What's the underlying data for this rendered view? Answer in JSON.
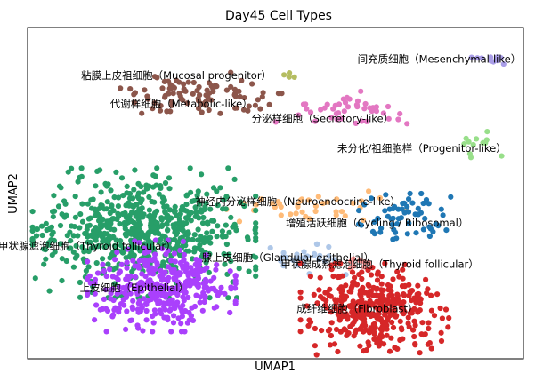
{
  "chart_data": {
    "type": "scatter",
    "title": "Day45 Cell Types",
    "xlabel": "UMAP1",
    "ylabel": "UMAP2",
    "grid": false,
    "legend": "on data",
    "clusters": [
      {
        "name": "粘膜上皮祖细胞（Mucosal progenitor）",
        "color": "#b5bd61",
        "center": [
          0.53,
          0.86
        ],
        "spread": [
          0.012,
          0.006
        ],
        "n": 4
      },
      {
        "name": "间充质细胞（Mesenchymal-like）",
        "color": "#aa9ee8",
        "center": [
          0.925,
          0.905
        ],
        "spread": [
          0.022,
          0.008
        ],
        "n": 12
      },
      {
        "name": "代谢样细胞（Metabolic-like）",
        "color": "#8c564b",
        "center": [
          0.34,
          0.8
        ],
        "spread": [
          0.075,
          0.028
        ],
        "n": 95
      },
      {
        "name": "分泌样细胞（Secretory-like）",
        "color": "#e377c2",
        "center": [
          0.65,
          0.75
        ],
        "spread": [
          0.065,
          0.025
        ],
        "n": 45
      },
      {
        "name": "未分化/祖细胞样（Progenitor-like）",
        "color": "#98df8a",
        "center": [
          0.91,
          0.64
        ],
        "spread": [
          0.02,
          0.02
        ],
        "n": 12
      },
      {
        "name": "神经内分泌样细胞（Neuroendocrine-like）",
        "color": "#ffbb78",
        "center": [
          0.58,
          0.46
        ],
        "spread": [
          0.08,
          0.02
        ],
        "n": 40
      },
      {
        "name": "增殖活跃细胞（Cycling / Ribosomal）",
        "color": "#1f77b4",
        "center": [
          0.76,
          0.43
        ],
        "spread": [
          0.05,
          0.04
        ],
        "n": 60
      },
      {
        "name": "甲状腺滤泡细胞（Thyroid follicular）",
        "color": "#279e68",
        "center": [
          0.23,
          0.38
        ],
        "spread": [
          0.1,
          0.085
        ],
        "n": 650
      },
      {
        "name": "上皮细胞（Epithelial）",
        "color": "#aa40fc",
        "center": [
          0.27,
          0.22
        ],
        "spread": [
          0.065,
          0.06
        ],
        "n": 380
      },
      {
        "name": "腺上皮细胞（Glandular epithelial）",
        "color": "#aec7e8",
        "center": [
          0.55,
          0.3
        ],
        "spread": [
          0.04,
          0.02
        ],
        "n": 30
      },
      {
        "name": "甲状腺成熟滤泡细胞（Thyroid follicular）",
        "color": "#ff9896",
        "center": [
          0.665,
          0.29
        ],
        "spread": [
          0.02,
          0.01
        ],
        "n": 8
      },
      {
        "name": "成纤维细胞（Fibroblast）",
        "color": "#d62728",
        "center": [
          0.7,
          0.15
        ],
        "spread": [
          0.065,
          0.06
        ],
        "n": 380
      }
    ],
    "label_positions": [
      {
        "text": "粘膜上皮祖细胞（Mucosal progenitor）",
        "x": 0.3,
        "y": 0.855
      },
      {
        "text": "间充质细胞（Mesenchymal-like）",
        "x": 0.995,
        "y": 0.905
      },
      {
        "text": "代谢样细胞（Metabolic-like）",
        "x": 0.31,
        "y": 0.77
      },
      {
        "text": "分泌样细胞（Secretory-like）",
        "x": 0.595,
        "y": 0.725
      },
      {
        "text": "未分化/祖细胞样（Progenitor-like）",
        "x": 0.795,
        "y": 0.635
      },
      {
        "text": "神经内分泌样细胞（Neuroendocrine-like）",
        "x": 0.545,
        "y": 0.475
      },
      {
        "text": "增殖活跃细胞（Cycling / Ribosomal）",
        "x": 0.705,
        "y": 0.41
      },
      {
        "text": "甲状腺滤泡细胞（Thyroid follicular）",
        "x": 0.12,
        "y": 0.34
      },
      {
        "text": "腺上皮细胞（Glandular epithelial）",
        "x": 0.525,
        "y": 0.305
      },
      {
        "text": "甲状腺成熟滤泡细胞（Thyroid follicular）",
        "x": 0.71,
        "y": 0.285
      },
      {
        "text": "上皮细胞（Epithelial）",
        "x": 0.215,
        "y": 0.215
      },
      {
        "text": "成纤维细胞（Fibroblast）",
        "x": 0.665,
        "y": 0.152
      }
    ]
  }
}
